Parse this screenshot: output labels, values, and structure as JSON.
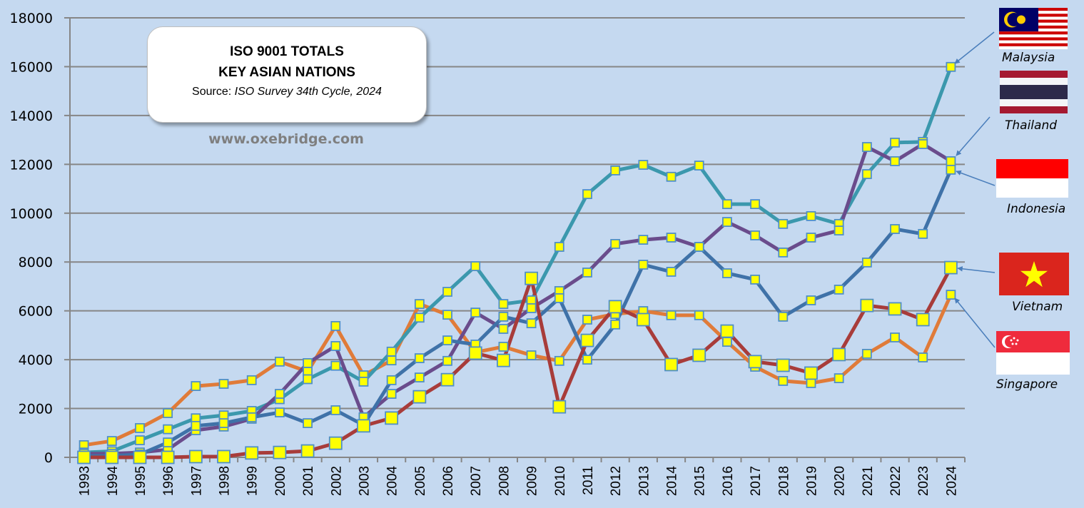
{
  "title_box": {
    "line1": "ISO 9001 TOTALS",
    "line2": "KEY ASIAN NATIONS",
    "source_label": "Source: ",
    "source_value": "ISO Survey 34th Cycle, 2024"
  },
  "website": "www.oxebridge.com",
  "legend": [
    {
      "name": "Malaysia",
      "flag": "malaysia-flag"
    },
    {
      "name": "Thailand",
      "flag": "thailand-flag"
    },
    {
      "name": "Indonesia",
      "flag": "indonesia-flag"
    },
    {
      "name": "Vietnam",
      "flag": "vietnam-flag"
    },
    {
      "name": "Singapore",
      "flag": "singapore-flag"
    }
  ],
  "chart_data": {
    "type": "line",
    "title": "ISO 9001 TOTALS KEY ASIAN NATIONS",
    "xlabel": "",
    "ylabel": "",
    "ylim": [
      0,
      18000
    ],
    "yticks": [
      "0",
      "2000",
      "4000",
      "6000",
      "8000",
      "10000",
      "12000",
      "14000",
      "16000",
      "18000"
    ],
    "grid": true,
    "legend_position": "right",
    "categories": [
      "1993",
      "1994",
      "1995",
      "1996",
      "1997",
      "1998",
      "1999",
      "2000",
      "2001",
      "2002",
      "2003",
      "2004",
      "2005",
      "2006",
      "2007",
      "2008",
      "2009",
      "2010",
      "2011",
      "2012",
      "2013",
      "2014",
      "2015",
      "2016",
      "2017",
      "2018",
      "2019",
      "2020",
      "2021",
      "2022",
      "2023",
      "2024"
    ],
    "series": [
      {
        "name": "Singapore",
        "color": "#e07b39",
        "marker": "small",
        "values": [
          500,
          670,
          1200,
          1810,
          2920,
          3010,
          3160,
          3920,
          3510,
          5380,
          3360,
          3970,
          6280,
          5840,
          4300,
          4530,
          4180,
          3950,
          5640,
          5870,
          5990,
          5820,
          5820,
          4730,
          3710,
          3130,
          3040,
          3240,
          4240,
          4910,
          4090,
          6660
        ]
      },
      {
        "name": "Malaysia",
        "color": "#3b98ad",
        "marker": "small",
        "values": [
          200,
          250,
          700,
          1150,
          1600,
          1720,
          1900,
          2380,
          3200,
          3750,
          3100,
          4330,
          5720,
          6780,
          7830,
          6280,
          6430,
          8620,
          10780,
          11750,
          11980,
          11490,
          11950,
          10370,
          10370,
          9560,
          9880,
          9560,
          11600,
          12890,
          12920,
          15990
        ]
      },
      {
        "name": "Thailand",
        "color": "#6a4c8c",
        "marker": "small",
        "values": [
          150,
          150,
          200,
          320,
          1110,
          1260,
          1580,
          2600,
          3860,
          4560,
          1640,
          2600,
          3270,
          3950,
          5930,
          5260,
          6110,
          6810,
          7570,
          8740,
          8910,
          9000,
          8620,
          9640,
          9090,
          8390,
          9000,
          9290,
          12710,
          12130,
          12830,
          12130
        ]
      },
      {
        "name": "Indonesia",
        "color": "#3f72a8",
        "marker": "small",
        "values": [
          60,
          60,
          120,
          610,
          1290,
          1400,
          1640,
          1840,
          1400,
          1930,
          1320,
          3160,
          4060,
          4790,
          4620,
          5760,
          5490,
          6520,
          4000,
          5440,
          7890,
          7600,
          8620,
          7540,
          7280,
          5760,
          6430,
          6870,
          7980,
          9350,
          9150,
          11780
        ]
      },
      {
        "name": "Vietnam",
        "color": "#a83c3a",
        "marker": "large",
        "values": [
          0,
          0,
          0,
          0,
          30,
          30,
          180,
          200,
          260,
          580,
          1290,
          1610,
          2480,
          3180,
          4270,
          3970,
          7330,
          2070,
          4790,
          6170,
          5640,
          3800,
          4180,
          5170,
          3920,
          3770,
          3450,
          4210,
          6220,
          6080,
          5640,
          7770
        ]
      }
    ]
  }
}
